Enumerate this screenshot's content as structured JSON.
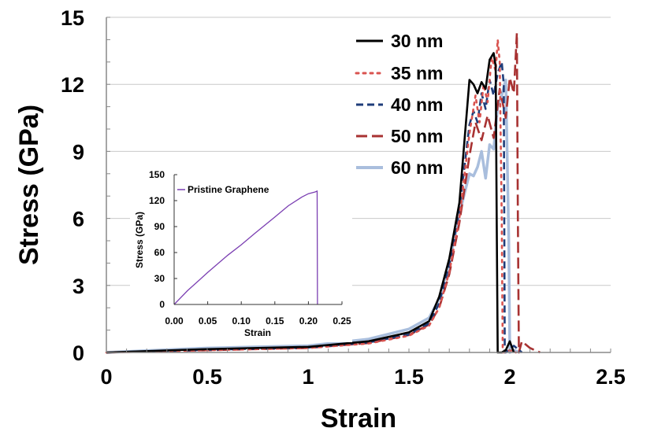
{
  "chart_data": [
    {
      "type": "line",
      "title": "",
      "xlabel": "Strain",
      "ylabel": "Stress (GPa)",
      "xlim": [
        0,
        2.5
      ],
      "ylim": [
        0,
        15
      ],
      "xticks": [
        "0",
        "0.5",
        "1",
        "1.5",
        "2",
        "2.5"
      ],
      "yticks": [
        "0",
        "3",
        "6",
        "9",
        "12",
        "15"
      ],
      "grid": "horizontal",
      "legend_position": "top-right",
      "series": [
        {
          "name": "30 nm",
          "color": "#000000",
          "style": "solid",
          "x": [
            0,
            0.5,
            1.0,
            1.3,
            1.5,
            1.6,
            1.65,
            1.7,
            1.75,
            1.8,
            1.82,
            1.84,
            1.86,
            1.88,
            1.9,
            1.92,
            1.93,
            1.935,
            1.94,
            1.96,
            1.98,
            2.0,
            2.02
          ],
          "y": [
            0,
            0.15,
            0.25,
            0.5,
            0.9,
            1.4,
            2.5,
            4.2,
            6.7,
            12.2,
            12.0,
            11.6,
            12.1,
            11.8,
            13.1,
            13.4,
            12.8,
            6.0,
            0,
            0,
            0.1,
            0.5,
            0
          ]
        },
        {
          "name": "35 nm",
          "color": "#d9534f",
          "style": "dotted",
          "x": [
            0,
            0.5,
            1.0,
            1.3,
            1.5,
            1.6,
            1.65,
            1.7,
            1.75,
            1.8,
            1.83,
            1.85,
            1.87,
            1.89,
            1.91,
            1.93,
            1.94,
            1.95,
            1.96,
            1.965,
            1.97,
            2.0,
            2.03
          ],
          "y": [
            0,
            0.1,
            0.2,
            0.4,
            0.75,
            1.2,
            2.0,
            3.6,
            6.0,
            9.8,
            11.5,
            10.3,
            12.0,
            11.2,
            13.2,
            12.6,
            14.0,
            13.0,
            6.0,
            0,
            0,
            0.1,
            0
          ],
          "dash": "3,6"
        },
        {
          "name": "40 nm",
          "color": "#1f3d7a",
          "style": "dashed",
          "x": [
            0,
            0.5,
            1.0,
            1.3,
            1.5,
            1.6,
            1.65,
            1.7,
            1.75,
            1.8,
            1.82,
            1.84,
            1.86,
            1.88,
            1.9,
            1.92,
            1.94,
            1.96,
            1.97,
            1.975,
            1.98,
            2.02,
            2.06
          ],
          "y": [
            0,
            0.12,
            0.22,
            0.45,
            0.8,
            1.3,
            2.2,
            3.9,
            6.4,
            10.2,
            10.8,
            10.3,
            11.6,
            10.9,
            12.2,
            11.5,
            12.5,
            13.0,
            12.0,
            0,
            0,
            0.3,
            0
          ],
          "dash": "9,5"
        },
        {
          "name": "50 nm",
          "color": "#a83232",
          "style": "long-dash",
          "x": [
            0,
            0.5,
            1.0,
            1.3,
            1.5,
            1.6,
            1.65,
            1.7,
            1.75,
            1.8,
            1.83,
            1.86,
            1.89,
            1.92,
            1.95,
            1.98,
            2.0,
            2.02,
            2.035,
            2.04,
            2.045,
            2.06,
            2.1,
            2.15
          ],
          "y": [
            0,
            0.1,
            0.2,
            0.42,
            0.78,
            1.25,
            2.0,
            3.5,
            5.8,
            8.8,
            10.3,
            9.5,
            10.6,
            9.6,
            11.8,
            10.5,
            12.3,
            11.6,
            14.3,
            6.0,
            0,
            0.5,
            0.2,
            0
          ],
          "dash": "14,6"
        },
        {
          "name": "60 nm",
          "color": "#a9bedd",
          "style": "solid",
          "x": [
            0,
            0.5,
            1.0,
            1.3,
            1.5,
            1.6,
            1.65,
            1.7,
            1.75,
            1.8,
            1.82,
            1.84,
            1.86,
            1.88,
            1.9,
            1.92,
            1.94,
            1.96,
            1.98,
            1.995,
            2.0,
            2.02,
            2.05
          ],
          "y": [
            0,
            0.2,
            0.3,
            0.6,
            1.05,
            1.55,
            2.4,
            4.0,
            6.2,
            8.0,
            7.9,
            8.3,
            9.0,
            7.8,
            9.3,
            9.1,
            11.0,
            11.5,
            12.2,
            5.0,
            0,
            0.1,
            0
          ]
        }
      ]
    },
    {
      "type": "line",
      "title": "",
      "xlabel": "Strain",
      "ylabel": "Stress (GPa)",
      "xlim": [
        0,
        0.25
      ],
      "ylim": [
        0,
        150
      ],
      "xticks": [
        "0.00",
        "0.05",
        "0.10",
        "0.15",
        "0.20",
        "0.25"
      ],
      "yticks": [
        "0",
        "30",
        "60",
        "90",
        "120",
        "150"
      ],
      "legend_position": "top-left",
      "series": [
        {
          "name": "Pristine Graphene",
          "color": "#7b3fb2",
          "style": "solid",
          "x": [
            0,
            0.02,
            0.05,
            0.08,
            0.1,
            0.12,
            0.15,
            0.17,
            0.19,
            0.2,
            0.21,
            0.213,
            0.2135
          ],
          "y": [
            0,
            16,
            37,
            57,
            69,
            82,
            101,
            114,
            124,
            128,
            130,
            131,
            0
          ]
        }
      ]
    }
  ]
}
